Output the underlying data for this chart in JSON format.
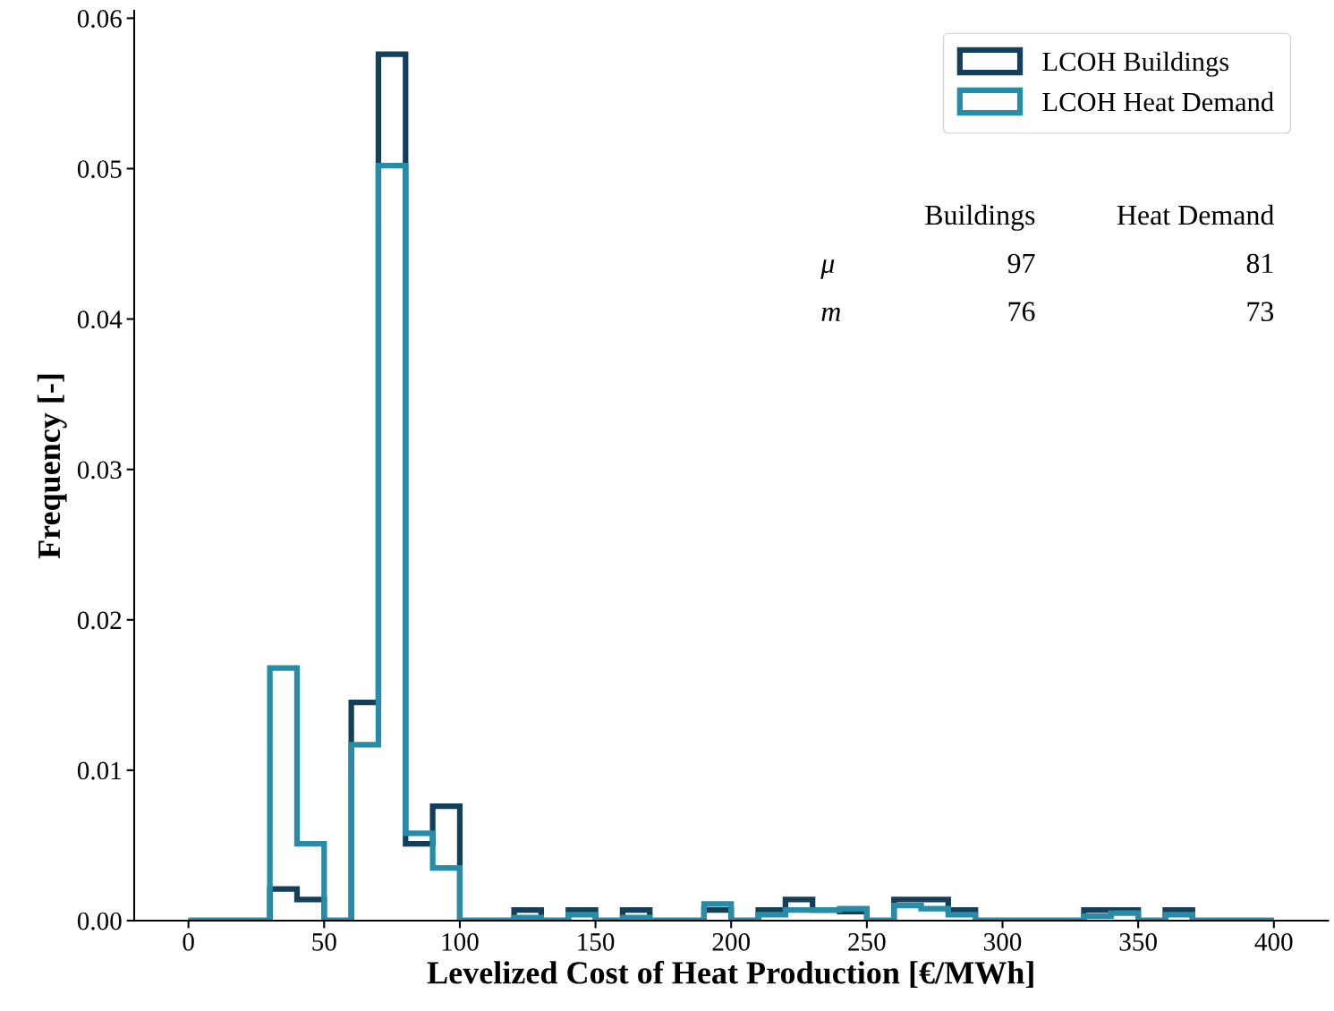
{
  "chart_data": {
    "type": "histogram",
    "xlabel": "Levelized Cost of Heat Production [€/MWh]",
    "ylabel": "Frequency [-]",
    "bins": [
      0,
      10,
      20,
      30,
      40,
      50,
      60,
      70,
      80,
      90,
      100,
      110,
      120,
      130,
      140,
      150,
      160,
      170,
      180,
      190,
      200,
      210,
      220,
      230,
      240,
      250,
      260,
      270,
      280,
      290,
      300,
      310,
      320,
      330,
      340,
      350,
      360,
      370,
      380,
      390,
      400
    ],
    "series": [
      {
        "name": "LCOH Buildings",
        "color": "#143f5a",
        "values": [
          0,
          0,
          0,
          0.0021,
          0.0014,
          0,
          0.0145,
          0.0576,
          0.0051,
          0.0076,
          0,
          0,
          0.0007,
          0,
          0.0007,
          0,
          0.0007,
          0,
          0,
          0.0007,
          0,
          0.0007,
          0.0014,
          0.0007,
          0.0006,
          0,
          0.0014,
          0.0014,
          0.0007,
          0,
          0,
          0,
          0,
          0.0007,
          0.0007,
          0,
          0.0007,
          0,
          0,
          0
        ]
      },
      {
        "name": "LCOH Heat Demand",
        "color": "#268ca8",
        "values": [
          0,
          0,
          0,
          0.0168,
          0.0051,
          0,
          0.0117,
          0.0502,
          0.0058,
          0.0035,
          0,
          0,
          0.0002,
          0,
          0.0004,
          0,
          0.0002,
          0,
          0,
          0.0011,
          0,
          0.0004,
          0.0007,
          0.0007,
          0.0008,
          0,
          0.001,
          0.0008,
          0.0004,
          0,
          0,
          0,
          0,
          0.0003,
          0.0005,
          0,
          0.0004,
          0,
          0,
          0
        ]
      }
    ],
    "xlim": [
      -20,
      420
    ],
    "ylim": [
      0,
      0.0605
    ],
    "xticks": [
      0,
      50,
      100,
      150,
      200,
      250,
      300,
      350,
      400
    ],
    "yticks": [
      {
        "value": 0,
        "label": "0.00"
      },
      {
        "value": 0.01,
        "label": "0.01"
      },
      {
        "value": 0.02,
        "label": "0.02"
      },
      {
        "value": 0.03,
        "label": "0.03"
      },
      {
        "value": 0.04,
        "label": "0.04"
      },
      {
        "value": 0.05,
        "label": "0.05"
      },
      {
        "value": 0.06,
        "label": "0.06"
      }
    ],
    "grid": false,
    "legend": "top right",
    "annotations": [
      "Buildings",
      "Heat Demand",
      "μ",
      "97",
      "81",
      "m",
      "76",
      "73"
    ]
  }
}
